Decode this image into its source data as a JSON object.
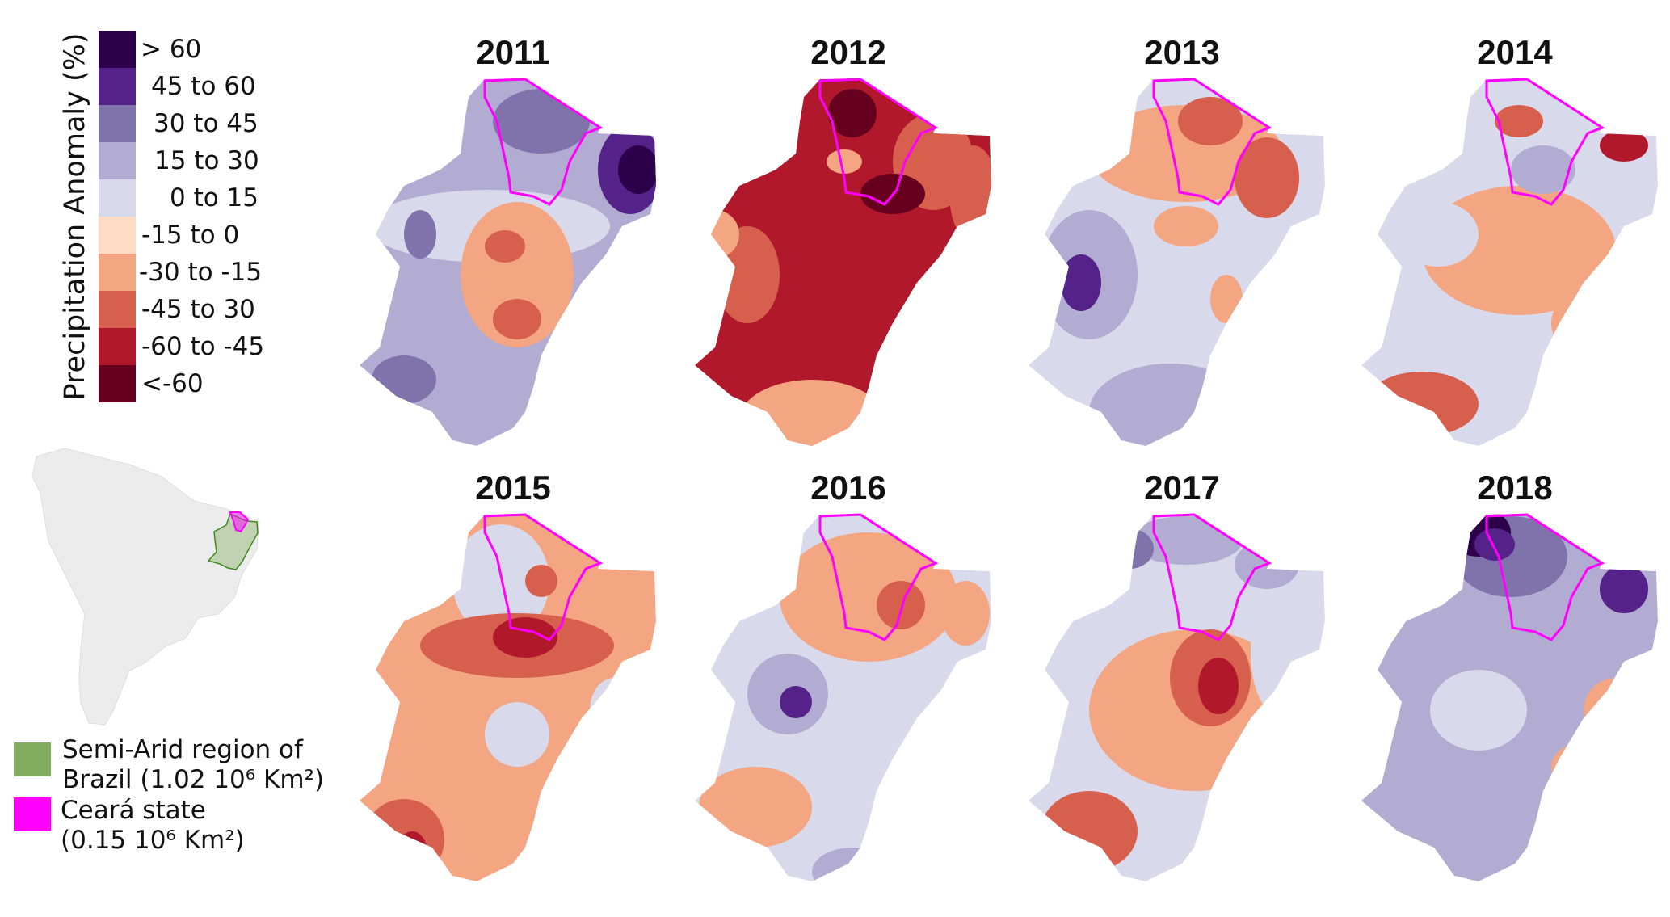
{
  "colorbar": {
    "title": "Precipitation Anomaly (%)",
    "classes": [
      {
        "label": "> 60",
        "color": "#2d004b"
      },
      {
        "label": "45 to 60",
        "color": "#542288"
      },
      {
        "label": "30 to 45",
        "color": "#8073ac"
      },
      {
        "label": "15 to 30",
        "color": "#b2abd2"
      },
      {
        "label": "0 to 15",
        "color": "#d8daeb"
      },
      {
        "label": "-15 to 0",
        "color": "#fddbc7"
      },
      {
        "label": "-30 to -15",
        "color": "#f4a582"
      },
      {
        "label": "-45 to 30",
        "color": "#d6604d"
      },
      {
        "label": "-60 to -45",
        "color": "#b2182b"
      },
      {
        "label": "<-60",
        "color": "#67001f"
      }
    ]
  },
  "maps": [
    {
      "year": "2011"
    },
    {
      "year": "2012"
    },
    {
      "year": "2013"
    },
    {
      "year": "2014"
    },
    {
      "year": "2015"
    },
    {
      "year": "2016"
    },
    {
      "year": "2017"
    },
    {
      "year": "2018"
    }
  ],
  "outline_colors": {
    "ceara": "#ff00ff",
    "semi_arid": "#82ac5f",
    "continent": "#ececec"
  },
  "legend": {
    "semi_arid": {
      "line1": "Semi-Arid region of",
      "line2": "Brazil (1.02 10⁶ Km²)",
      "color": "#82ac5f"
    },
    "ceara": {
      "line1": "Ceará state",
      "line2": "(0.15 10⁶ Km²)",
      "color": "#ff00ff"
    }
  }
}
